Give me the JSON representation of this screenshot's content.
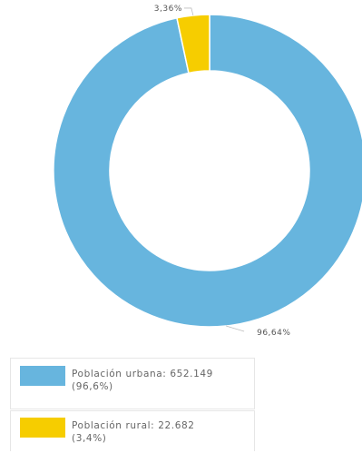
{
  "chart_data": {
    "type": "pie",
    "variant": "donut",
    "series": [
      {
        "name": "Población urbana",
        "value": 652149,
        "percent": 96.64,
        "percent_label": "96,64%",
        "color": "#67b5de",
        "legend_line1": "Población urbana: 652.149",
        "legend_line2": "(96,6%)"
      },
      {
        "name": "Población rural",
        "value": 22682,
        "percent": 3.36,
        "percent_label": "3,36%",
        "color": "#f6cd00",
        "legend_line1": "Población rural: 22.682",
        "legend_line2": "(3,4%)"
      }
    ],
    "start_angle_deg": 0,
    "direction": "clockwise",
    "legend_position": "bottom"
  }
}
